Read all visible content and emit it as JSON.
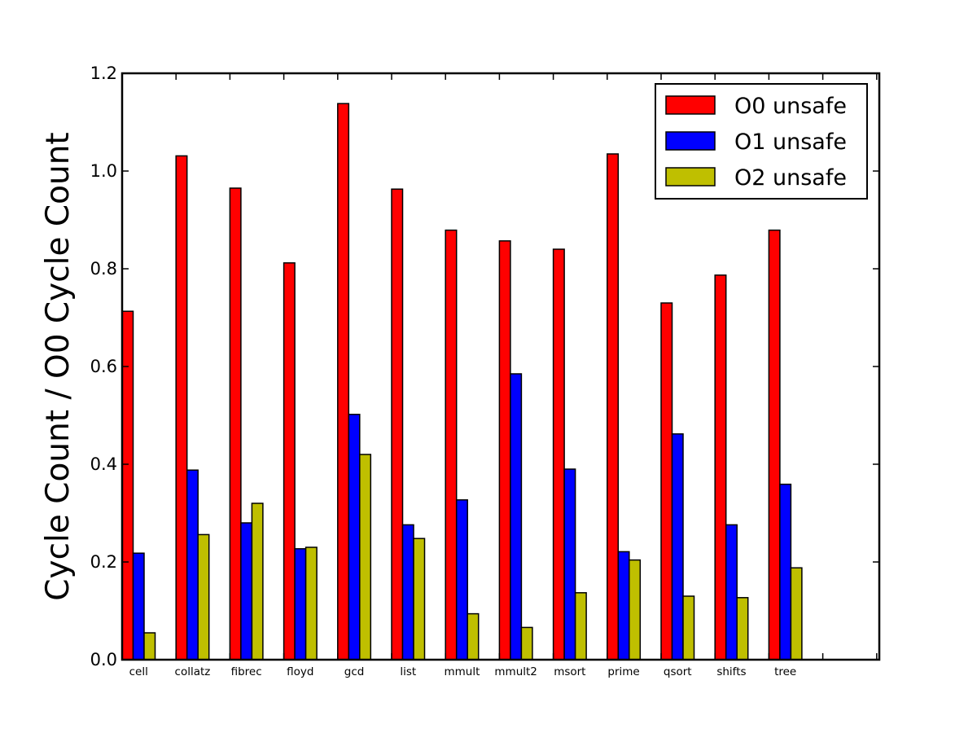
{
  "chart_data": {
    "type": "bar",
    "title": "",
    "xlabel": "",
    "ylabel": "Cycle Count / O0 Cycle Count",
    "ylim": [
      0.0,
      1.2
    ],
    "yticks": [
      "0.0",
      "0.2",
      "0.4",
      "0.6",
      "0.8",
      "1.0",
      "1.2"
    ],
    "categories": [
      "cell",
      "collatz",
      "fibrec",
      "floyd",
      "gcd",
      "list",
      "mmult",
      "mmult2",
      "msort",
      "prime",
      "qsort",
      "shifts",
      "tree"
    ],
    "series": [
      {
        "name": "O0 unsafe",
        "color": "#ff0000",
        "values": [
          0.713,
          1.031,
          0.965,
          0.812,
          1.138,
          0.963,
          0.879,
          0.857,
          0.84,
          1.035,
          0.73,
          0.787,
          0.879
        ]
      },
      {
        "name": "O1 unsafe",
        "color": "#0000ff",
        "values": [
          0.218,
          0.388,
          0.28,
          0.227,
          0.502,
          0.276,
          0.327,
          0.585,
          0.39,
          0.221,
          0.462,
          0.276,
          0.359
        ]
      },
      {
        "name": "O2 unsafe",
        "color": "#bfbf00",
        "values": [
          0.055,
          0.256,
          0.32,
          0.23,
          0.42,
          0.248,
          0.094,
          0.066,
          0.137,
          0.204,
          0.13,
          0.127,
          0.188
        ]
      }
    ],
    "legend": "top-right",
    "grid": false
  }
}
